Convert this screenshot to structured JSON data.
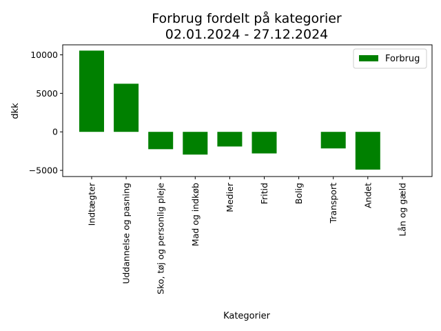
{
  "chart_data": {
    "type": "bar",
    "title": "Forbrug fordelt på kategorier",
    "subtitle": "02.01.2024 - 27.12.2024",
    "xlabel": "Kategorier",
    "ylabel": "dkk",
    "categories": [
      "Indtægter",
      "Uddannelse og pasning",
      "Sko, tøj og personlig pleje",
      "Mad og indkøb",
      "Medier",
      "Fritid",
      "Bolig",
      "Transport",
      "Andet",
      "Lån og gæld"
    ],
    "series": [
      {
        "name": "Forbrug",
        "color": "#008000",
        "values": [
          10550,
          6250,
          -2250,
          -2950,
          -1900,
          -2800,
          0,
          -2150,
          -4900,
          0
        ]
      }
    ],
    "ylim": [
      -5800,
      11300
    ],
    "yticks": [
      -5000,
      0,
      5000,
      10000
    ],
    "grid": false,
    "legend": "top-right"
  }
}
